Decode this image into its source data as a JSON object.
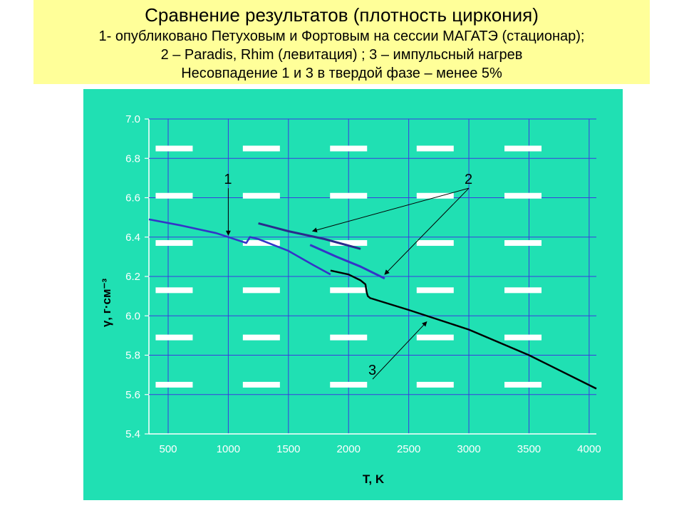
{
  "header": {
    "title": "Сравнение результатов (плотность циркония)",
    "line1": "1- опубликовано Петуховым и Фортовым на сессии МАГАТЭ (стационар);",
    "line2": "2 – Paradis, Rhim (левитация) ; 3 – импульсный нагрев",
    "line3": "Несовпадение 1 и 3 в твердой фазе – менее 5%"
  },
  "colors": {
    "title_bg": "#ffff99",
    "plot_bg": "#20e0b3",
    "grid": "#3a3ae0",
    "tick_text": "#ffffff",
    "series_blue": "#3434c8",
    "series_navy": "#2a2a8c",
    "series_black": "#000000"
  },
  "chart_data": {
    "type": "line",
    "xlabel": "T, K",
    "ylabel": "γ, г·см⁻³",
    "xlim": [
      340,
      4060
    ],
    "ylim": [
      5.4,
      7.0
    ],
    "x_ticks": [
      500,
      1000,
      1500,
      2000,
      2500,
      3000,
      3500,
      4000
    ],
    "y_ticks": [
      "5.4",
      "5.6",
      "5.8",
      "6.0",
      "6.2",
      "6.4",
      "6.6",
      "6.8",
      "7.0"
    ],
    "grid": true,
    "series": [
      {
        "id": "1",
        "x": [
          340,
          600,
          900,
          1100,
          1150,
          1180,
          1250,
          1500,
          1700,
          1850
        ],
        "y": [
          6.49,
          6.46,
          6.42,
          6.38,
          6.37,
          6.4,
          6.39,
          6.33,
          6.26,
          6.21
        ]
      },
      {
        "id": "2a",
        "x": [
          1250,
          1500,
          1800,
          2100
        ],
        "y": [
          6.47,
          6.43,
          6.39,
          6.34
        ]
      },
      {
        "id": "2b",
        "x": [
          1680,
          1900,
          2100,
          2300
        ],
        "y": [
          6.36,
          6.3,
          6.25,
          6.19
        ]
      },
      {
        "id": "3",
        "x": [
          1850,
          2000,
          2100,
          2140,
          2150,
          2160,
          2180,
          2500,
          3000,
          3500,
          4060
        ],
        "y": [
          6.23,
          6.21,
          6.18,
          6.16,
          6.12,
          6.1,
          6.09,
          6.03,
          5.93,
          5.8,
          5.63
        ]
      }
    ],
    "annotations": [
      {
        "text": "1",
        "x": 1000,
        "y": 6.67,
        "arrow_to": [
          1000,
          6.41
        ]
      },
      {
        "text": "2",
        "x": 3000,
        "y": 6.67,
        "arrow_to": [
          [
            1700,
            6.43
          ],
          [
            2300,
            6.21
          ]
        ]
      },
      {
        "text": "3",
        "x": 2200,
        "y": 5.7,
        "arrow_to": [
          2650,
          5.97
        ]
      }
    ]
  }
}
